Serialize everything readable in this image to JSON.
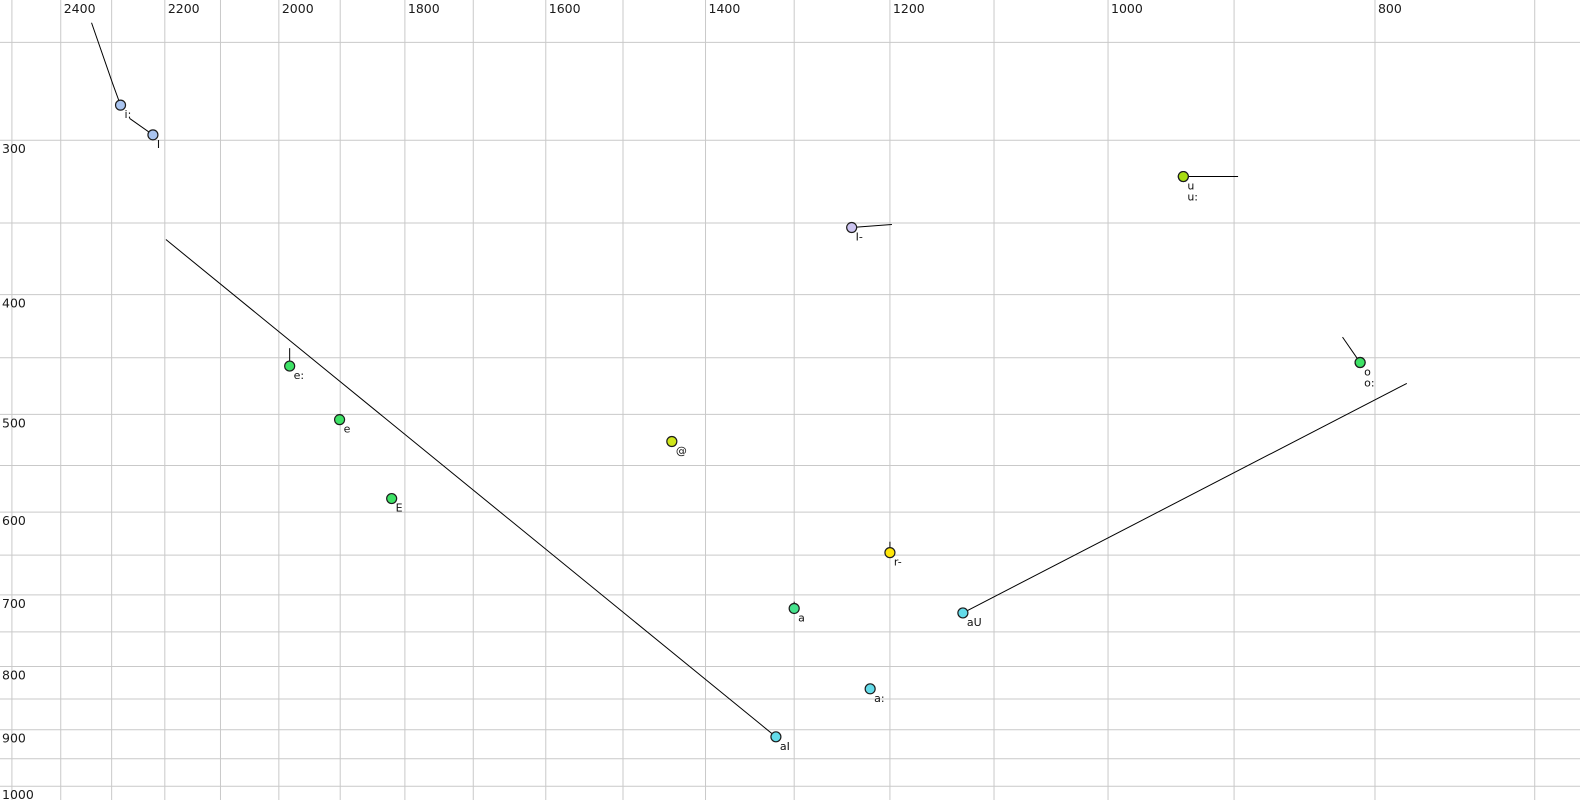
{
  "chart_data": {
    "type": "scatter",
    "title": "",
    "layout_hints": {
      "x_axis_position": "top",
      "y_axis_position": "left",
      "grid": true,
      "legend": "none"
    },
    "x_axis": {
      "scale": "log",
      "reversed": true,
      "range": [
        2525,
        674
      ],
      "tick_values": [
        2400,
        2200,
        2000,
        1800,
        1600,
        1400,
        1200,
        1000,
        800
      ],
      "tick_labels": [
        "2400",
        "2200",
        "2000",
        "1800",
        "1600",
        "1400",
        "1200",
        "1000",
        "800"
      ],
      "gridline_min": 700,
      "gridline_max": 2500,
      "gridline_step": 100
    },
    "y_axis": {
      "scale": "log",
      "direction": "down",
      "range": [
        231,
        1026
      ],
      "tick_values": [
        300,
        400,
        500,
        600,
        700,
        800,
        900,
        1000
      ],
      "tick_labels": [
        "300",
        "400",
        "500",
        "600",
        "700",
        "800",
        "900",
        "1000"
      ],
      "gridline_min": 250,
      "gridline_max": 1000,
      "gridline_step": 50
    },
    "colors": {
      "background": "#ffffff",
      "gridline": "#c9c9c9",
      "trajectory_line": "#000000",
      "point_outline": "#1c1c1c",
      "tick_text": "#1a1a1a",
      "label_text": "#111111"
    },
    "points": [
      {
        "label": "i:",
        "f1": 281,
        "f2": 2283,
        "color": "#a9c4ef",
        "tail": [
          [
            241,
            2339
          ],
          [
            270,
            2298
          ]
        ]
      },
      {
        "label": "I",
        "f1": 297,
        "f2": 2222,
        "color": "#a9c4ef",
        "tail": [
          [
            288,
            2266
          ]
        ]
      },
      {
        "label": "I-",
        "f1": 353,
        "f2": 1239,
        "color": "#ccc4f0",
        "tail": [
          [
            351,
            1198
          ]
        ]
      },
      {
        "label": "u",
        "f1": 321,
        "f2": 939,
        "color": "#a8de12",
        "tail": [
          [
            321,
            897
          ]
        ]
      },
      {
        "label": "u:",
        "f1": 321,
        "f2": 939,
        "color": "#a8de12",
        "label_row": 2
      },
      {
        "label": "e:",
        "f1": 457,
        "f2": 1982,
        "color": "#3ee266",
        "tail": [
          [
            442,
            1982
          ]
        ]
      },
      {
        "label": "e",
        "f1": 505,
        "f2": 1901,
        "color": "#3ee266"
      },
      {
        "label": "E",
        "f1": 585,
        "f2": 1820,
        "color": "#3ee266"
      },
      {
        "label": "@",
        "f1": 526,
        "f2": 1440,
        "color": "#cfe61a"
      },
      {
        "label": "r-",
        "f1": 647,
        "f2": 1200,
        "color": "#ffe60a",
        "tail": [
          [
            634,
            1200
          ]
        ]
      },
      {
        "label": "a",
        "f1": 718,
        "f2": 1300,
        "color": "#45e38d",
        "tail": [
          [
            709,
            1300
          ]
        ]
      },
      {
        "label": "a:",
        "f1": 834,
        "f2": 1220,
        "color": "#63dbe9"
      },
      {
        "label": "aI",
        "f1": 912,
        "f2": 1320,
        "color": "#63dbe9",
        "tail": [
          [
            361,
            2198
          ]
        ]
      },
      {
        "label": "aU",
        "f1": 724,
        "f2": 1129,
        "color": "#63dbe9",
        "tail": [
          [
            472,
            779
          ]
        ]
      },
      {
        "label": "o",
        "f1": 454,
        "f2": 810,
        "color": "#3ee266",
        "tail": [
          [
            433,
            822
          ]
        ]
      },
      {
        "label": "o:",
        "f1": 454,
        "f2": 810,
        "color": "#3ee266",
        "label_row": 2
      }
    ]
  }
}
